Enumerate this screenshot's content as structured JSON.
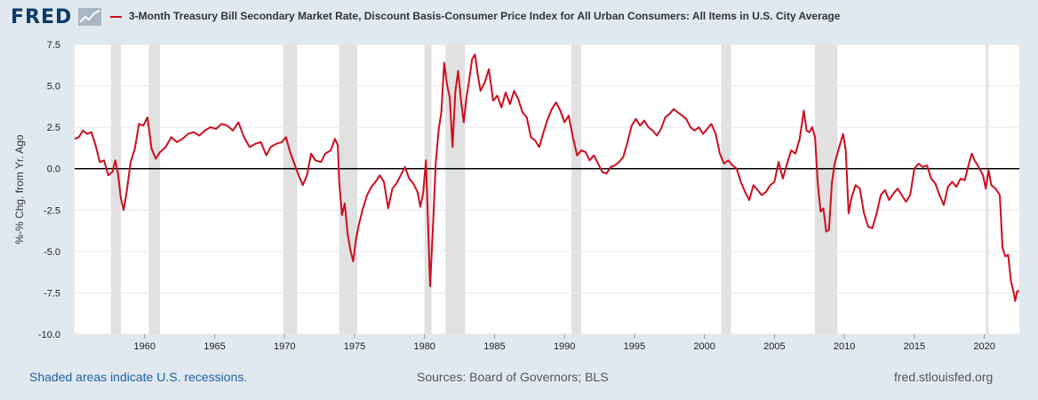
{
  "header": {
    "logo_text": "FRED",
    "logo_icon": "trend-line-icon",
    "series_title": "3-Month Treasury Bill Secondary Market Rate, Discount Basis-Consumer Price Index for All Urban Consumers: All Items in U.S. City Average"
  },
  "footer": {
    "recession_note": "Shaded areas indicate U.S. recessions.",
    "sources": "Sources: Board of Governors; BLS",
    "site": "fred.stlouisfed.org"
  },
  "colors": {
    "series": "#cc0e1f",
    "recession": "#e1e1e1",
    "background": "#e1e9f0",
    "plot": "#ffffff"
  },
  "chart_data": {
    "type": "line",
    "title": "3-Month Treasury Bill Secondary Market Rate, Discount Basis-Consumer Price Index for All Urban Consumers: All Items in U.S. City Average",
    "xlabel": "",
    "ylabel": "%-% Chg. from Yr. Ago",
    "xlim": [
      1955.0,
      2022.5
    ],
    "ylim": [
      -10.0,
      7.5
    ],
    "x_ticks": [
      1960,
      1965,
      1970,
      1975,
      1980,
      1985,
      1990,
      1995,
      2000,
      2005,
      2010,
      2015,
      2020
    ],
    "y_ticks": [
      7.5,
      5.0,
      2.5,
      0.0,
      -2.5,
      -5.0,
      -7.5,
      -10.0
    ],
    "y_tick_labels": [
      "7.5",
      "5.0",
      "2.5",
      "0.0",
      "-2.5",
      "-5.0",
      "-7.5",
      "-10.0"
    ],
    "grid": "horizontal",
    "legend": "top",
    "reference_line": 0,
    "recessions": [
      [
        1957.6,
        1958.3
      ],
      [
        1960.3,
        1961.1
      ],
      [
        1969.9,
        1970.9
      ],
      [
        1973.9,
        1975.2
      ],
      [
        1980.0,
        1980.5
      ],
      [
        1981.5,
        1982.9
      ],
      [
        1990.5,
        1991.2
      ],
      [
        2001.2,
        2001.9
      ],
      [
        2007.9,
        2009.5
      ],
      [
        2020.1,
        2020.3
      ]
    ],
    "series": [
      {
        "values": [
          [
            1955.0,
            1.8
          ],
          [
            1955.3,
            1.9
          ],
          [
            1955.6,
            2.3
          ],
          [
            1955.9,
            2.1
          ],
          [
            1956.2,
            2.2
          ],
          [
            1956.5,
            1.4
          ],
          [
            1956.8,
            0.4
          ],
          [
            1957.1,
            0.5
          ],
          [
            1957.4,
            -0.4
          ],
          [
            1957.7,
            -0.2
          ],
          [
            1957.9,
            0.5
          ],
          [
            1958.1,
            -0.3
          ],
          [
            1958.3,
            -1.8
          ],
          [
            1958.5,
            -2.5
          ],
          [
            1958.7,
            -1.5
          ],
          [
            1959.0,
            0.4
          ],
          [
            1959.3,
            1.2
          ],
          [
            1959.6,
            2.7
          ],
          [
            1959.9,
            2.6
          ],
          [
            1960.2,
            3.1
          ],
          [
            1960.5,
            1.2
          ],
          [
            1960.8,
            0.6
          ],
          [
            1961.1,
            1.0
          ],
          [
            1961.5,
            1.3
          ],
          [
            1961.9,
            1.9
          ],
          [
            1962.3,
            1.6
          ],
          [
            1962.7,
            1.8
          ],
          [
            1963.1,
            2.1
          ],
          [
            1963.5,
            2.2
          ],
          [
            1963.9,
            2.0
          ],
          [
            1964.3,
            2.3
          ],
          [
            1964.7,
            2.5
          ],
          [
            1965.1,
            2.4
          ],
          [
            1965.5,
            2.7
          ],
          [
            1965.9,
            2.6
          ],
          [
            1966.3,
            2.3
          ],
          [
            1966.7,
            2.8
          ],
          [
            1967.1,
            1.9
          ],
          [
            1967.5,
            1.3
          ],
          [
            1967.9,
            1.5
          ],
          [
            1968.3,
            1.6
          ],
          [
            1968.7,
            0.8
          ],
          [
            1969.0,
            1.3
          ],
          [
            1969.4,
            1.5
          ],
          [
            1969.8,
            1.6
          ],
          [
            1970.1,
            1.9
          ],
          [
            1970.4,
            1.0
          ],
          [
            1970.7,
            0.3
          ],
          [
            1971.0,
            -0.4
          ],
          [
            1971.3,
            -1.0
          ],
          [
            1971.6,
            -0.4
          ],
          [
            1971.9,
            0.9
          ],
          [
            1972.2,
            0.5
          ],
          [
            1972.6,
            0.4
          ],
          [
            1972.9,
            0.9
          ],
          [
            1973.3,
            1.1
          ],
          [
            1973.6,
            1.8
          ],
          [
            1973.8,
            1.4
          ],
          [
            1973.9,
            -0.7
          ],
          [
            1974.1,
            -2.8
          ],
          [
            1974.3,
            -2.1
          ],
          [
            1974.5,
            -3.9
          ],
          [
            1974.7,
            -4.9
          ],
          [
            1974.9,
            -5.6
          ],
          [
            1975.1,
            -4.3
          ],
          [
            1975.3,
            -3.4
          ],
          [
            1975.6,
            -2.4
          ],
          [
            1975.9,
            -1.6
          ],
          [
            1976.2,
            -1.1
          ],
          [
            1976.5,
            -0.8
          ],
          [
            1976.8,
            -0.4
          ],
          [
            1977.1,
            -0.8
          ],
          [
            1977.4,
            -2.4
          ],
          [
            1977.7,
            -1.2
          ],
          [
            1978.0,
            -0.9
          ],
          [
            1978.3,
            -0.4
          ],
          [
            1978.6,
            0.1
          ],
          [
            1978.9,
            -0.6
          ],
          [
            1979.2,
            -0.9
          ],
          [
            1979.5,
            -1.4
          ],
          [
            1979.7,
            -2.3
          ],
          [
            1979.9,
            -1.5
          ],
          [
            1980.1,
            0.5
          ],
          [
            1980.3,
            -4.5
          ],
          [
            1980.4,
            -7.1
          ],
          [
            1980.6,
            -3.5
          ],
          [
            1980.8,
            0.3
          ],
          [
            1981.0,
            2.3
          ],
          [
            1981.2,
            3.4
          ],
          [
            1981.4,
            6.4
          ],
          [
            1981.6,
            5.1
          ],
          [
            1981.8,
            4.3
          ],
          [
            1982.0,
            1.3
          ],
          [
            1982.2,
            4.6
          ],
          [
            1982.4,
            5.9
          ],
          [
            1982.6,
            4.2
          ],
          [
            1982.8,
            2.8
          ],
          [
            1983.0,
            4.3
          ],
          [
            1983.2,
            5.4
          ],
          [
            1983.4,
            6.6
          ],
          [
            1983.6,
            6.9
          ],
          [
            1983.8,
            5.7
          ],
          [
            1984.0,
            4.7
          ],
          [
            1984.3,
            5.2
          ],
          [
            1984.6,
            6.0
          ],
          [
            1984.9,
            4.1
          ],
          [
            1985.2,
            4.4
          ],
          [
            1985.5,
            3.7
          ],
          [
            1985.8,
            4.6
          ],
          [
            1986.1,
            3.9
          ],
          [
            1986.4,
            4.7
          ],
          [
            1986.7,
            4.2
          ],
          [
            1987.0,
            3.4
          ],
          [
            1987.3,
            3.1
          ],
          [
            1987.6,
            1.9
          ],
          [
            1987.9,
            1.7
          ],
          [
            1988.2,
            1.3
          ],
          [
            1988.5,
            2.2
          ],
          [
            1988.8,
            3.0
          ],
          [
            1989.1,
            3.6
          ],
          [
            1989.4,
            4.0
          ],
          [
            1989.7,
            3.5
          ],
          [
            1990.0,
            2.8
          ],
          [
            1990.3,
            3.2
          ],
          [
            1990.6,
            1.9
          ],
          [
            1990.9,
            0.8
          ],
          [
            1991.2,
            1.1
          ],
          [
            1991.5,
            1.0
          ],
          [
            1991.8,
            0.5
          ],
          [
            1992.1,
            0.8
          ],
          [
            1992.4,
            0.3
          ],
          [
            1992.7,
            -0.2
          ],
          [
            1993.0,
            -0.3
          ],
          [
            1993.3,
            0.1
          ],
          [
            1993.6,
            0.2
          ],
          [
            1993.9,
            0.4
          ],
          [
            1994.2,
            0.7
          ],
          [
            1994.5,
            1.6
          ],
          [
            1994.8,
            2.6
          ],
          [
            1995.1,
            3.0
          ],
          [
            1995.4,
            2.6
          ],
          [
            1995.7,
            2.9
          ],
          [
            1996.0,
            2.5
          ],
          [
            1996.3,
            2.3
          ],
          [
            1996.6,
            2.0
          ],
          [
            1996.9,
            2.4
          ],
          [
            1997.2,
            3.1
          ],
          [
            1997.5,
            3.3
          ],
          [
            1997.8,
            3.6
          ],
          [
            1998.1,
            3.4
          ],
          [
            1998.4,
            3.2
          ],
          [
            1998.7,
            3.0
          ],
          [
            1999.0,
            2.5
          ],
          [
            1999.3,
            2.3
          ],
          [
            1999.6,
            2.5
          ],
          [
            1999.9,
            2.1
          ],
          [
            2000.2,
            2.4
          ],
          [
            2000.5,
            2.7
          ],
          [
            2000.8,
            2.1
          ],
          [
            2001.1,
            0.9
          ],
          [
            2001.4,
            0.3
          ],
          [
            2001.7,
            0.5
          ],
          [
            2002.0,
            0.2
          ],
          [
            2002.3,
            0.0
          ],
          [
            2002.6,
            -0.8
          ],
          [
            2002.9,
            -1.4
          ],
          [
            2003.2,
            -1.9
          ],
          [
            2003.5,
            -1.0
          ],
          [
            2003.8,
            -1.3
          ],
          [
            2004.1,
            -1.6
          ],
          [
            2004.4,
            -1.4
          ],
          [
            2004.7,
            -1.0
          ],
          [
            2005.0,
            -0.8
          ],
          [
            2005.3,
            0.4
          ],
          [
            2005.6,
            -0.6
          ],
          [
            2005.9,
            0.3
          ],
          [
            2006.2,
            1.1
          ],
          [
            2006.5,
            0.9
          ],
          [
            2006.8,
            1.8
          ],
          [
            2007.1,
            3.5
          ],
          [
            2007.3,
            2.3
          ],
          [
            2007.5,
            2.2
          ],
          [
            2007.7,
            2.5
          ],
          [
            2007.9,
            1.9
          ],
          [
            2008.1,
            -0.9
          ],
          [
            2008.3,
            -2.6
          ],
          [
            2008.5,
            -2.4
          ],
          [
            2008.7,
            -3.8
          ],
          [
            2008.9,
            -3.7
          ],
          [
            2009.1,
            -0.9
          ],
          [
            2009.3,
            0.3
          ],
          [
            2009.6,
            1.2
          ],
          [
            2009.9,
            2.1
          ],
          [
            2010.1,
            1.1
          ],
          [
            2010.3,
            -2.7
          ],
          [
            2010.5,
            -1.8
          ],
          [
            2010.8,
            -1.0
          ],
          [
            2011.1,
            -1.2
          ],
          [
            2011.4,
            -2.7
          ],
          [
            2011.7,
            -3.5
          ],
          [
            2012.0,
            -3.6
          ],
          [
            2012.3,
            -2.7
          ],
          [
            2012.6,
            -1.6
          ],
          [
            2012.9,
            -1.3
          ],
          [
            2013.2,
            -1.9
          ],
          [
            2013.5,
            -1.5
          ],
          [
            2013.8,
            -1.2
          ],
          [
            2014.1,
            -1.6
          ],
          [
            2014.4,
            -2.0
          ],
          [
            2014.7,
            -1.6
          ],
          [
            2015.0,
            0.0
          ],
          [
            2015.3,
            0.3
          ],
          [
            2015.6,
            0.1
          ],
          [
            2015.9,
            0.2
          ],
          [
            2016.2,
            -0.6
          ],
          [
            2016.5,
            -0.9
          ],
          [
            2016.8,
            -1.6
          ],
          [
            2017.1,
            -2.2
          ],
          [
            2017.4,
            -1.1
          ],
          [
            2017.7,
            -0.8
          ],
          [
            2018.0,
            -1.1
          ],
          [
            2018.3,
            -0.6
          ],
          [
            2018.6,
            -0.7
          ],
          [
            2018.9,
            0.3
          ],
          [
            2019.1,
            0.9
          ],
          [
            2019.3,
            0.5
          ],
          [
            2019.6,
            0.1
          ],
          [
            2019.9,
            -0.4
          ],
          [
            2020.1,
            -1.2
          ],
          [
            2020.3,
            -0.1
          ],
          [
            2020.5,
            -1.0
          ],
          [
            2020.8,
            -1.2
          ],
          [
            2021.1,
            -1.6
          ],
          [
            2021.3,
            -4.8
          ],
          [
            2021.5,
            -5.3
          ],
          [
            2021.7,
            -5.2
          ],
          [
            2021.9,
            -6.8
          ],
          [
            2022.1,
            -7.5
          ],
          [
            2022.2,
            -8.0
          ],
          [
            2022.35,
            -7.4
          ],
          [
            2022.5,
            -7.4
          ]
        ]
      }
    ]
  }
}
